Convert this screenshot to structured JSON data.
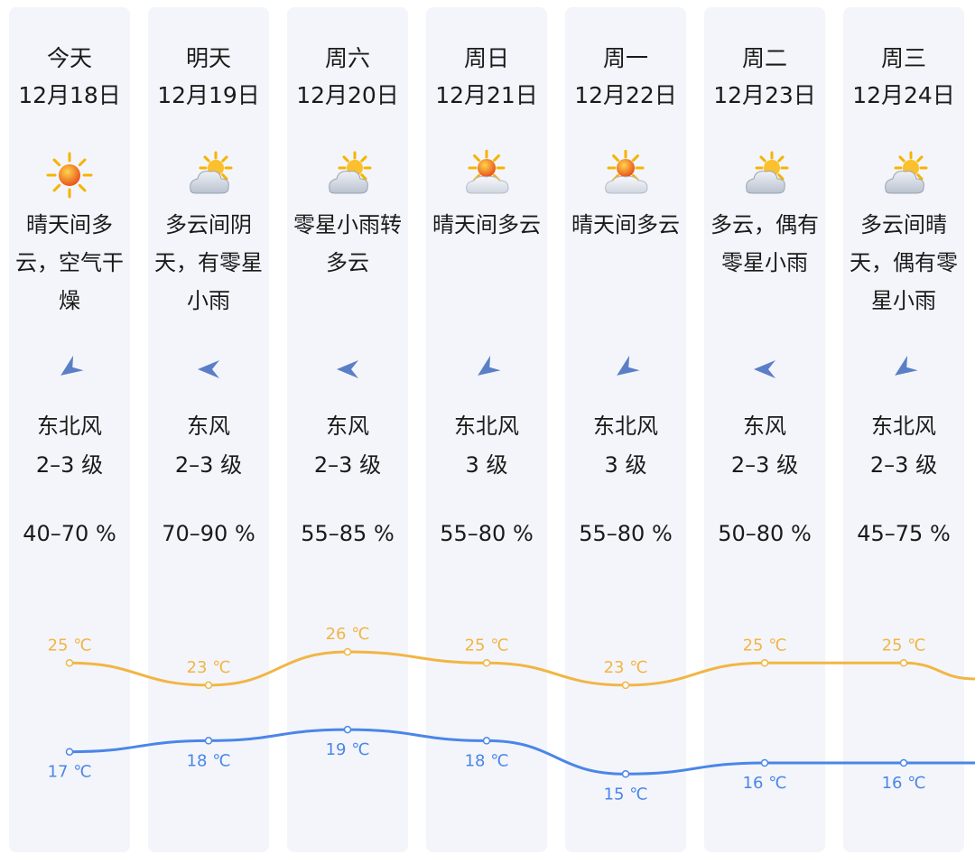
{
  "colors": {
    "card_bg": "#f3f5fa",
    "high_line": "#f2b544",
    "low_line": "#4a86e8",
    "wind_arrow": "#5b7fc7"
  },
  "days": [
    {
      "day": "今天",
      "date": "12月18日",
      "icon": "sun-icon",
      "condition": "晴天间多云，空气干燥",
      "wind_icon": "wind-arrow-northeast-icon",
      "wind_dir": "东北风",
      "wind_level": "2–3 级",
      "humidity": "40–70 %",
      "high_label": "25 ℃",
      "low_label": "17 ℃"
    },
    {
      "day": "明天",
      "date": "12月19日",
      "icon": "partly-cloudy-icon",
      "condition": "多云间阴天，有零星小雨",
      "wind_icon": "wind-arrow-east-icon",
      "wind_dir": "东风",
      "wind_level": "2–3 级",
      "humidity": "70–90 %",
      "high_label": "23 ℃",
      "low_label": "18 ℃"
    },
    {
      "day": "周六",
      "date": "12月20日",
      "icon": "partly-cloudy-icon",
      "condition": "零星小雨转多云",
      "wind_icon": "wind-arrow-east-icon",
      "wind_dir": "东风",
      "wind_level": "2–3 级",
      "humidity": "55–85 %",
      "high_label": "26 ℃",
      "low_label": "19 ℃"
    },
    {
      "day": "周日",
      "date": "12月21日",
      "icon": "sun-cloud-icon",
      "condition": "晴天间多云",
      "wind_icon": "wind-arrow-northeast-icon",
      "wind_dir": "东北风",
      "wind_level": "3 级",
      "humidity": "55–80 %",
      "high_label": "25 ℃",
      "low_label": "18 ℃"
    },
    {
      "day": "周一",
      "date": "12月22日",
      "icon": "sun-cloud-icon",
      "condition": "晴天间多云",
      "wind_icon": "wind-arrow-northeast-icon",
      "wind_dir": "东北风",
      "wind_level": "3 级",
      "humidity": "55–80 %",
      "high_label": "23 ℃",
      "low_label": "15 ℃"
    },
    {
      "day": "周二",
      "date": "12月23日",
      "icon": "partly-cloudy-icon",
      "condition": "多云，偶有零星小雨",
      "wind_icon": "wind-arrow-east-icon",
      "wind_dir": "东风",
      "wind_level": "2–3 级",
      "humidity": "50–80 %",
      "high_label": "25 ℃",
      "low_label": "16 ℃"
    },
    {
      "day": "周三",
      "date": "12月24日",
      "icon": "partly-cloudy-icon",
      "condition": "多云间晴天，偶有零星小雨",
      "wind_icon": "wind-arrow-northeast-icon",
      "wind_dir": "东北风",
      "wind_level": "2–3 级",
      "humidity": "45–75 %",
      "high_label": "25 ℃",
      "low_label": "16 ℃"
    }
  ],
  "chart_data": {
    "type": "line",
    "categories": [
      "12月18日",
      "12月19日",
      "12月20日",
      "12月21日",
      "12月22日",
      "12月23日",
      "12月24日"
    ],
    "series": [
      {
        "values": [
          25,
          23,
          26,
          25,
          23,
          25,
          25
        ]
      },
      {
        "values": [
          17,
          18,
          19,
          18,
          15,
          16,
          16
        ]
      }
    ],
    "grid": false,
    "legend": "none"
  }
}
